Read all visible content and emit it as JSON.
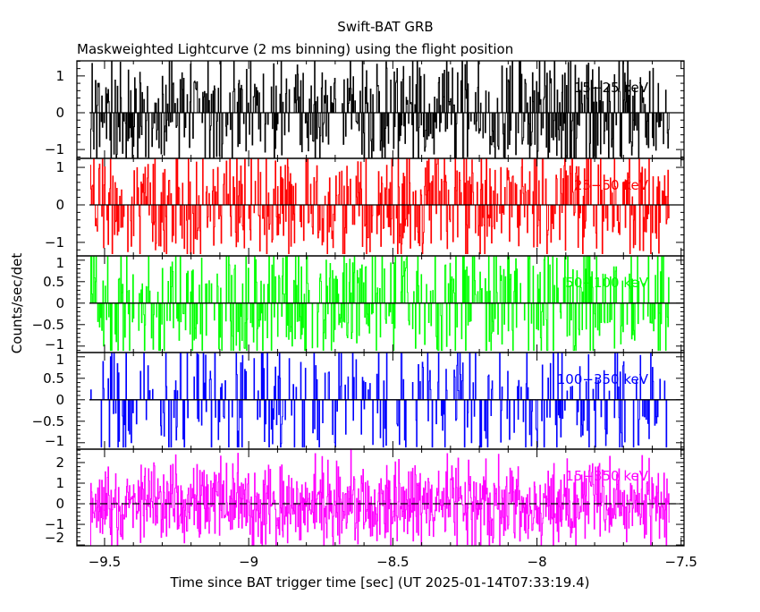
{
  "chart_data": {
    "type": "line",
    "title": "Swift-BAT GRB",
    "subtitle": "Maskweighted Lightcurve (2 ms binning) using the flight position",
    "xlabel": "Time since BAT trigger time [sec] (UT 2025-01-14T07:33:19.4)",
    "ylabel": "Counts/sec/det",
    "xlim": [
      -9.596,
      -7.49
    ],
    "x_ticks": [
      -9.5,
      -9,
      -8.5,
      -8,
      -7.5
    ],
    "x_tick_labels": [
      "-9.5",
      "-9",
      "-8.5",
      "-8",
      "-7.5"
    ],
    "bin_size_sec": 0.002,
    "data_x_range": [
      -9.55,
      -7.54
    ],
    "grid": false,
    "panels": [
      {
        "name": "15-25 keV",
        "label": "15−25 keV",
        "color": "#000000",
        "ylim": [
          -1.24,
          1.41
        ],
        "y_ticks": [
          -1,
          0,
          1
        ],
        "y_tick_labels": [
          "−1",
          "0",
          "1"
        ],
        "amplitude": 1.4,
        "sparsity": 0.45,
        "seed": 11
      },
      {
        "name": "25-50 keV",
        "label": "25−50 keV",
        "color": "#ff0000",
        "ylim": [
          -1.36,
          1.24
        ],
        "y_ticks": [
          -1,
          0,
          1
        ],
        "y_tick_labels": [
          "−1",
          "0",
          "1"
        ],
        "amplitude": 1.3,
        "sparsity": 0.45,
        "seed": 23
      },
      {
        "name": "50-100 keV",
        "label": "50−100 keV",
        "color": "#00ff00",
        "ylim": [
          -1.15,
          1.1
        ],
        "y_ticks": [
          -1,
          -0.5,
          0,
          0.5,
          1
        ],
        "y_tick_labels": [
          "−1",
          "−0.5",
          "0",
          "0.5",
          "1"
        ],
        "amplitude": 1.1,
        "sparsity": 0.55,
        "seed": 37
      },
      {
        "name": "100-350 keV",
        "label": "100−350 keV",
        "color": "#0000ff",
        "ylim": [
          -1.15,
          1.1
        ],
        "y_ticks": [
          -1,
          -0.5,
          0,
          0.5,
          1
        ],
        "y_tick_labels": [
          "−1",
          "−0.5",
          "0",
          "0.5",
          "1"
        ],
        "amplitude": 1.1,
        "sparsity": 0.7,
        "seed": 53
      },
      {
        "name": "15-350 keV",
        "label": "15−350 keV",
        "color": "#ff00ff",
        "ylim": [
          -2.04,
          2.65
        ],
        "y_ticks": [
          -2,
          -1,
          0,
          1,
          2
        ],
        "y_tick_labels": [
          "−2",
          "−1",
          "0",
          "1",
          "2"
        ],
        "amplitude": 2.6,
        "sparsity": 0.0,
        "seed": 71
      }
    ]
  }
}
